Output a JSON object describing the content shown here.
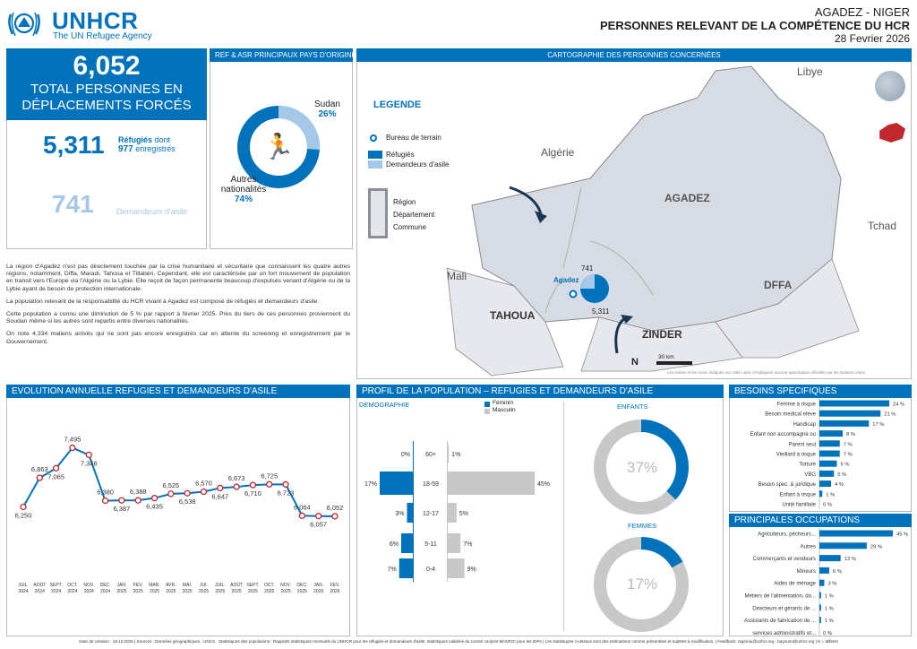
{
  "header": {
    "org_name": "UNHCR",
    "org_subtitle": "The UN Refugee Agency",
    "location": "AGADEZ - NIGER",
    "title": "PERSONNES RELEVANT DE LA COMPÉTENCE DU HCR",
    "date": "28 Fevrier 2026"
  },
  "summary": {
    "total": "6,052",
    "total_label": "TOTAL PERSONNES EN DÉPLACEMENTS FORCÉS",
    "refugees": "5,311",
    "refugees_label_1": "Réfugiés",
    "refugees_label_2": "dont",
    "enrolled": "977",
    "enrolled_label": "enregistrés",
    "asylum": "741",
    "asylum_label": "Demandeurs d'asile"
  },
  "origin": {
    "title": "REF & ASR PRINCIPAUX PAYS D'ORIGINE",
    "sudan_label": "Sudan",
    "sudan_pct": "26%",
    "other_label_1": "Autres",
    "other_label_2": "nationalités",
    "other_pct": "74%",
    "sudan_value": 26,
    "colors": {
      "sudan": "#a6c8e8",
      "other": "#0072bc"
    }
  },
  "narrative": [
    "La région d'Agadez n'est pas directement touchée par la crise humanitaire et sécuritaire que connaissent les quatre autres régions, notamment, Diffa, Maradi, Tahoua et Tillabéri. Cependant, elle est caractérisée par un fort mouvement de population en transit vers l'Europe via l'Algérie ou la Lybie. Elle reçoit de façon permanente beaucoup d'expulsés venant d'Algérie ou de la Lybie ayant de besoin de protection internationale.",
    "La population relevant de la responsabilité du HCR vivant à Agadez est composé de réfugiés et demandeurs d'asile.",
    "Cette population a connu une diminution de 5 % par rapport à février 2025. Pres du tiers de ces personnes proviennent du Soudan même si les autres sont repartis entre diverses nationalités.",
    "On note 4,334 maliens arrivés qui ne sont pas encore enregistrés car en attente du screening et enregistrement par le Gouvernement."
  ],
  "map": {
    "title": "CARTOGRAPHIE DES PERSONNES CONCERNÉES",
    "legend_title": "LEGENDE",
    "legend_office": "Bureau de terrain",
    "legend_refugees": "Réfugiés",
    "legend_asylum": "Demandeurs d'asile",
    "legend_region": "Région",
    "legend_department": "Département",
    "legend_commune": "Commune",
    "labels": {
      "libye": "Libye",
      "algerie": "Algérie",
      "agadez": "AGADEZ",
      "tchad": "Tchad",
      "mali": "Mali",
      "tahoua": "TAHOUA",
      "diffa": "DFFA",
      "zinder": "ZINDER",
      "agadez_city": "Agadez"
    },
    "pie_asylum": "741",
    "pie_refugees": "5,311",
    "scale": "30 km",
    "north": "N",
    "disclaimer": "Les limites et les noms indiqués sur cette carte n'impliquent aucune approbation officielle par les Nations Unies"
  },
  "evolution": {
    "title": "EVOLUTION ANNUELLE REFUGIES ET DEMANDEURS D'ASILE",
    "months": [
      "JUIL. 2024",
      "AOÛT 2024",
      "SEPT. 2024",
      "OCT. 2024",
      "NOV. 2024",
      "DÉC. 2024",
      "JAN. 2025",
      "FEV. 2025",
      "MAR. 2025",
      "AVR. 2025",
      "MAI. 2025",
      "JUI. 2025",
      "JUIL. 2025",
      "AOÛT 2025",
      "SEPT. 2025",
      "OCT. 2025",
      "NOV. 2025",
      "DEC. 2025",
      "JAN. 2026",
      "FEV. 2026"
    ],
    "values": [
      6250,
      6863,
      7065,
      7495,
      7346,
      6380,
      6387,
      6388,
      6435,
      6525,
      6538,
      6570,
      6647,
      6673,
      6710,
      6725,
      6723,
      6064,
      6057,
      6052
    ],
    "value_labels": [
      "6,250",
      "6,863",
      "7,065",
      "7,495",
      "7,346",
      "6,380",
      "6,387",
      "6,388",
      "6,435",
      "6,525",
      "6,538",
      "6,570",
      "6,647",
      "6,673",
      "6,710",
      "6,725",
      "6,723",
      "6,064",
      "6,057",
      "6,052"
    ]
  },
  "profile": {
    "title": "PROFIL DE LA POPULATION – REFUGIES ET DEMANDEURS D'ASILE",
    "demo_label": "DEMOGRAPHIE",
    "legend_f": "Féminin",
    "legend_m": "Masculin",
    "ages": [
      "60+",
      "18-59",
      "12-17",
      "5-11",
      "0-4"
    ],
    "female": [
      0,
      17,
      3,
      6,
      7
    ],
    "male": [
      1,
      45,
      5,
      7,
      9
    ],
    "female_labels": [
      "0%",
      "17%",
      "3%",
      "6%",
      "7%"
    ],
    "male_labels": [
      "1%",
      "45%",
      "5%",
      "7%",
      "9%"
    ],
    "children_label": "ENFANTS",
    "children_pct": "37%",
    "children_value": 37,
    "women_label": "FEMMES",
    "women_pct": "17%",
    "women_value": 17
  },
  "needs": {
    "title": "BESOINS SPECIFIQUES",
    "items": [
      {
        "label": "Femme à risque",
        "value": 24,
        "text": "24 %"
      },
      {
        "label": "Besoin medical eleve",
        "value": 21,
        "text": "21 %"
      },
      {
        "label": "Handicap",
        "value": 17,
        "text": "17 %"
      },
      {
        "label": "Enfant non accompagné ou",
        "value": 8,
        "text": "8 %"
      },
      {
        "label": "Parent seul",
        "value": 7,
        "text": "7 %"
      },
      {
        "label": "Vieillard à risque",
        "value": 7,
        "text": "7 %"
      },
      {
        "label": "Torture",
        "value": 6,
        "text": "6 %"
      },
      {
        "label": "VBG",
        "value": 5,
        "text": "5 %"
      },
      {
        "label": "Besoin spec. & juridique",
        "value": 4,
        "text": "4 %"
      },
      {
        "label": "Enfant à risque",
        "value": 1,
        "text": "1 %"
      },
      {
        "label": "Unité familiale",
        "value": 0,
        "text": "0 %"
      }
    ]
  },
  "occupations": {
    "title": "PRINCIPALES OCCUPATIONS",
    "items": [
      {
        "label": "Agriculteurs, pêcheurs...",
        "value": 45,
        "text": "45 %"
      },
      {
        "label": "Autres",
        "value": 29,
        "text": "29 %"
      },
      {
        "label": "Commerçants et vendeurs",
        "value": 13,
        "text": "13 %"
      },
      {
        "label": "Mineurs",
        "value": 6,
        "text": "6 %"
      },
      {
        "label": "Aides de ménage",
        "value": 3,
        "text": "3 %"
      },
      {
        "label": "Métiers de l'alimentation, do...",
        "value": 1,
        "text": "1 %"
      },
      {
        "label": "Directeurs et gérants de ...",
        "value": 1,
        "text": "1 %"
      },
      {
        "label": "Assistants de fabrication de ...",
        "value": 1,
        "text": "1 %"
      },
      {
        "label": "services administratifs et...",
        "value": 0,
        "text": "0 %"
      }
    ]
  },
  "footer": "Date de création : 19.10.2025 | Sources : Données géographiques : UNCS . Statistiques des populations : Rapports statistiques mensuels du UNHCR pour les réfugiés et demandeurs d'asile, statistiques validées du comité conjoint MAN/GC pour les IDPs | Les statistiques ci-dessus sont des estimations comme présentées et sujettes à modification. | Feedback: nigerniu@unhcr.org - bayoumi@unhcr.org | K = Milliers"
}
